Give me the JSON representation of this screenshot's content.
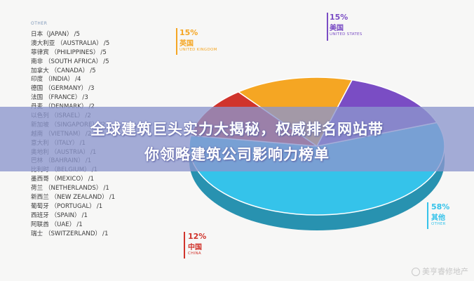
{
  "chart_data": {
    "type": "pie",
    "title": "",
    "slices": [
      {
        "label_cn": "其他",
        "label_en": "OTHER",
        "percent": 58,
        "color": "#35c3ea"
      },
      {
        "label_cn": "美国",
        "label_en": "UNITED STATES",
        "percent": 15,
        "color": "#7a4dc4"
      },
      {
        "label_cn": "英国",
        "label_en": "UNITED KINGDOM",
        "percent": 15,
        "color": "#f5a623"
      },
      {
        "label_cn": "中国",
        "label_en": "CHINA",
        "percent": 12,
        "color": "#d0342c"
      }
    ],
    "other_header": "OTHER",
    "other_breakdown": [
      {
        "country": "日本（JAPAN）",
        "count": "/5"
      },
      {
        "country": "澳大利亚 （AUSTRALIA）",
        "count": "/5"
      },
      {
        "country": "菲律宾 （PHILIPPINES）",
        "count": "/5"
      },
      {
        "country": "南非 （SOUTH AFRICA）",
        "count": "/5"
      },
      {
        "country": "加拿大 （CANADA）",
        "count": "/5"
      },
      {
        "country": "印度 （INDIA）",
        "count": "/4"
      },
      {
        "country": "德国 （GERMANY）",
        "count": "/3"
      },
      {
        "country": "法国 （FRANCE）",
        "count": "/3"
      },
      {
        "country": "丹麦 （DENMARK）",
        "count": "/2"
      },
      {
        "country": "以色列 （ISRAEL）",
        "count": "/2"
      },
      {
        "country": "新加坡 （SINGAPORE）",
        "count": "/2"
      },
      {
        "country": "越南 （VIETNAM）",
        "count": "/2"
      },
      {
        "country": "意大利 （ITALY）",
        "count": "/1"
      },
      {
        "country": "奥地利 （AUSTRIA）",
        "count": "/1"
      },
      {
        "country": "巴林 （BAHRAIN）",
        "count": "/1"
      },
      {
        "country": "比利时 （BELGIUM）",
        "count": "/1"
      },
      {
        "country": "墨西哥 （MEXICO）",
        "count": "/1"
      },
      {
        "country": "荷兰 （NETHERLANDS）",
        "count": "/1"
      },
      {
        "country": "新西兰 （NEW ZEALAND）",
        "count": "/1"
      },
      {
        "country": "葡萄牙 （PORTUGAL）",
        "count": "/1"
      },
      {
        "country": "西班牙 （SPAIN）",
        "count": "/1"
      },
      {
        "country": "阿联酋 （UAE）",
        "count": "/1"
      },
      {
        "country": "瑞士 （SWITZERLAND）",
        "count": "/1"
      }
    ],
    "callouts": {
      "us": {
        "pct": "15%",
        "name": "美国",
        "en": "UNITED STATES"
      },
      "uk": {
        "pct": "15%",
        "name": "英国",
        "en": "UNITED KINGDOM"
      },
      "china": {
        "pct": "12%",
        "name": "中国",
        "en": "CHINA"
      },
      "other": {
        "pct": "58%",
        "name": "其他",
        "en": "OTHER"
      }
    }
  },
  "banner": {
    "line1": "全球建筑巨头实力大揭秘，权威排名网站带",
    "line2": "你领略建筑公司影响力榜单"
  },
  "watermark": "美亨睿修地产",
  "colors": {
    "other": "#35c3ea",
    "us": "#7a4dc4",
    "uk": "#f5a623",
    "china": "#d0342c",
    "banner": "#8c96cd"
  }
}
